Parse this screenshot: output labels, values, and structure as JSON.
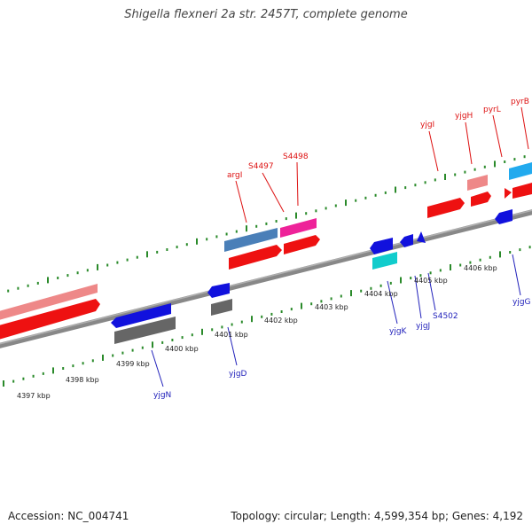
{
  "title": "Shigella flexneri 2a str. 2457T, complete genome",
  "footer": {
    "accession": "Accession: NC_004741",
    "summary": "Topology: circular; Length: 4,599,354 bp; Genes: 4,192"
  },
  "colors": {
    "backbone": "#888888",
    "tick": "#2a8a2a",
    "top_label": "#dd1111",
    "bottom_label": "#2222bb",
    "red": "#ee1111",
    "salmon": "#ee8888",
    "steelblue": "#4a7fb8",
    "pink": "#ee2299",
    "blue": "#1111dd",
    "cyan": "#11cccc",
    "gray": "#666666",
    "skyblue": "#22aaee"
  },
  "scale_labels": [
    "4397 kbp",
    "4398 kbp",
    "4399 kbp",
    "4400 kbp",
    "4401 kbp",
    "4402 kbp",
    "4403 kbp",
    "4404 kbp",
    "4405 kbp",
    "4406 kbp"
  ],
  "top_labels": [
    "argI",
    "S4497",
    "S4498",
    "yjgI",
    "yjgH",
    "pyrL",
    "pyrB"
  ],
  "bottom_labels": [
    "yjgN",
    "yjgD",
    "yjgK",
    "yjgJ",
    "S4502",
    "yjgG"
  ]
}
